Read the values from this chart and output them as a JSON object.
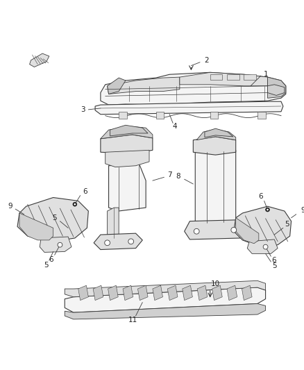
{
  "background_color": "#ffffff",
  "line_color": "#3a3a3a",
  "label_color": "#222222",
  "fig_width": 4.38,
  "fig_height": 5.33,
  "dpi": 100
}
